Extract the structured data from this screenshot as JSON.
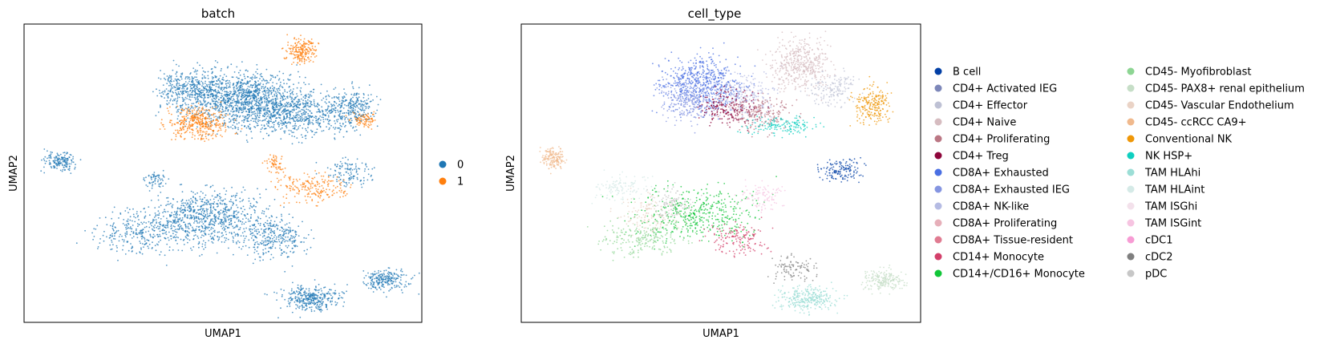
{
  "chart_data": [
    {
      "type": "scatter",
      "title": "batch",
      "xlabel": "UMAP1",
      "ylabel": "UMAP2",
      "grid": false,
      "ticks": "none",
      "legend_placement": "right",
      "series": [
        {
          "name": "0",
          "color": "#1f77b4"
        },
        {
          "name": "1",
          "color": "#ff7f0e"
        }
      ]
    },
    {
      "type": "scatter",
      "title": "cell_type",
      "xlabel": "UMAP1",
      "ylabel": "UMAP2",
      "grid": false,
      "ticks": "none",
      "legend_placement": "right",
      "series": [
        {
          "name": "B cell",
          "color": "#023fa5"
        },
        {
          "name": "CD4+ Activated IEG",
          "color": "#7d87b9"
        },
        {
          "name": "CD4+ Effector",
          "color": "#bec1d4"
        },
        {
          "name": "CD4+ Naive",
          "color": "#d6bcc0"
        },
        {
          "name": "CD4+ Proliferating",
          "color": "#bb7784"
        },
        {
          "name": "CD4+ Treg",
          "color": "#8e063b"
        },
        {
          "name": "CD8A+ Exhausted",
          "color": "#4a6fe3"
        },
        {
          "name": "CD8A+ Exhausted IEG",
          "color": "#8595e1"
        },
        {
          "name": "CD8A+ NK-like",
          "color": "#b5bbe3"
        },
        {
          "name": "CD8A+ Proliferating",
          "color": "#e6afb9"
        },
        {
          "name": "CD8A+ Tissue-resident",
          "color": "#e07b91"
        },
        {
          "name": "CD14+ Monocyte",
          "color": "#d33f6a"
        },
        {
          "name": "CD14+/CD16+ Monocyte",
          "color": "#11c638"
        },
        {
          "name": "CD45- Myofibroblast",
          "color": "#8dd593"
        },
        {
          "name": "CD45- PAX8+ renal epithelium",
          "color": "#c6dec7"
        },
        {
          "name": "CD45- Vascular Endothelium",
          "color": "#ead3c6"
        },
        {
          "name": "CD45- ccRCC CA9+",
          "color": "#f0b98d"
        },
        {
          "name": "Conventional NK",
          "color": "#ef9708"
        },
        {
          "name": "NK HSP+",
          "color": "#0fcfc0"
        },
        {
          "name": "TAM HLAhi",
          "color": "#9cded6"
        },
        {
          "name": "TAM HLAint",
          "color": "#d5eae7"
        },
        {
          "name": "TAM ISGhi",
          "color": "#f3e1eb"
        },
        {
          "name": "TAM ISGint",
          "color": "#f6c4e1"
        },
        {
          "name": "cDC1",
          "color": "#f79cd4"
        },
        {
          "name": "cDC2",
          "color": "#7f7f7f"
        },
        {
          "name": "pDC",
          "color": "#c7c7c7"
        }
      ]
    }
  ]
}
